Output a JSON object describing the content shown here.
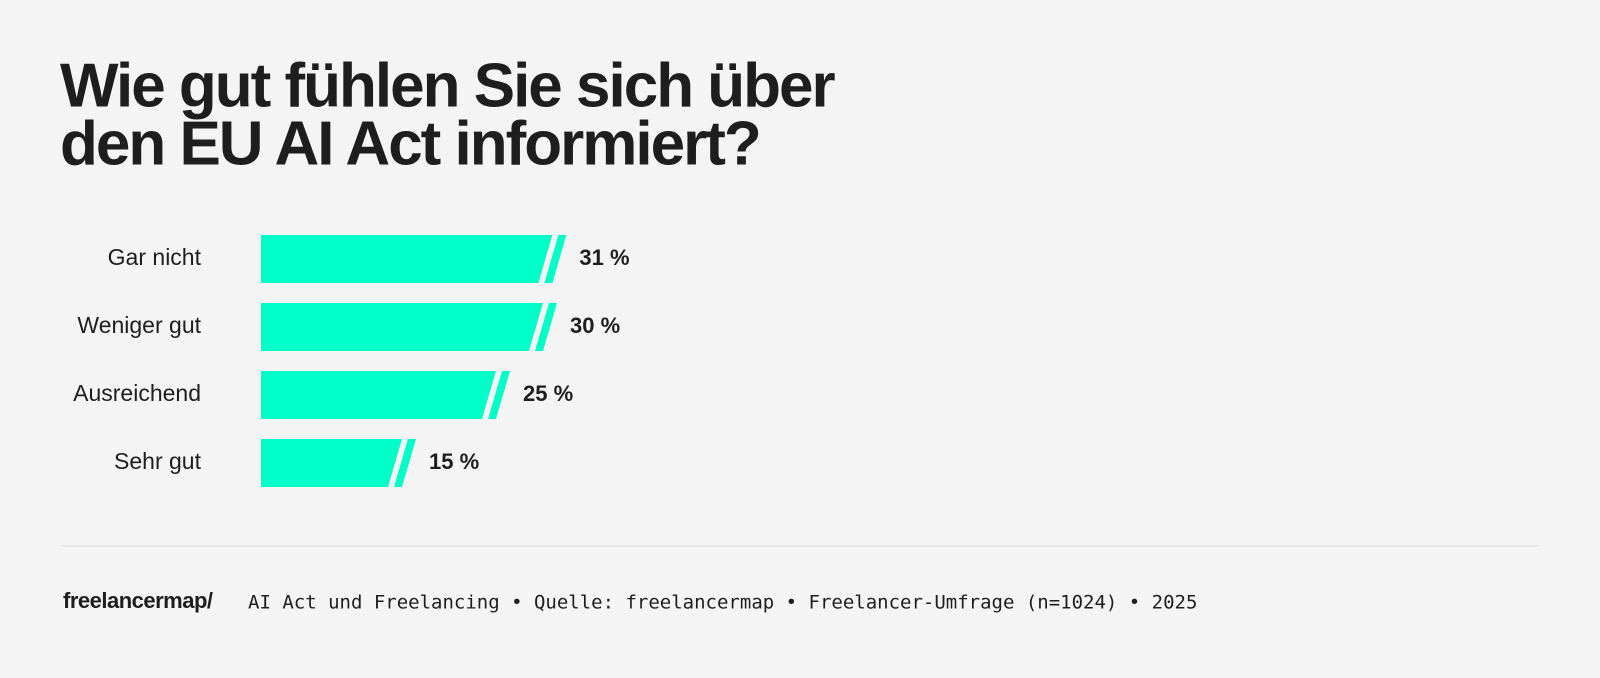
{
  "chart_data": {
    "type": "bar",
    "orientation": "horizontal",
    "title": [
      "Wie gut fühlen Sie sich über",
      "den EU AI Act informiert?"
    ],
    "categories": [
      "Gar nicht",
      "Weniger gut",
      "Ausreichend",
      "Sehr gut"
    ],
    "values": [
      31,
      30,
      25,
      15
    ],
    "value_labels": [
      "31 %",
      "30 %",
      "25 %",
      "15 %"
    ],
    "color": "#00ffc8"
  },
  "footer": {
    "logo": "freelancermap/",
    "source": "AI Act und Freelancing • Quelle: freelancermap • Freelancer-Umfrage (n=1024) • 2025"
  }
}
